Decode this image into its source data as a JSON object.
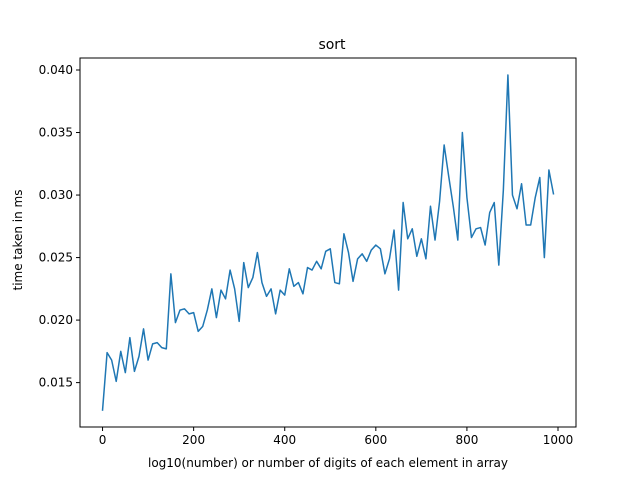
{
  "chart_data": {
    "type": "line",
    "title": "sort",
    "xlabel": "log10(number) or number of digits of each element in array",
    "ylabel": "time taken in ms",
    "xlim": [
      -49.5,
      1039.5
    ],
    "ylim": [
      0.01145,
      0.04096
    ],
    "xticks": [
      0,
      200,
      400,
      600,
      800,
      1000
    ],
    "xtick_labels": [
      "0",
      "200",
      "400",
      "600",
      "800",
      "1000"
    ],
    "yticks": [
      0.015,
      0.02,
      0.025,
      0.03,
      0.035,
      0.04
    ],
    "ytick_labels": [
      "0.015",
      "0.020",
      "0.025",
      "0.030",
      "0.035",
      "0.040"
    ],
    "grid": false,
    "legend": "none",
    "series": [
      {
        "color": "#1f77b4",
        "x": [
          0,
          10,
          20,
          30,
          40,
          50,
          60,
          70,
          80,
          90,
          100,
          110,
          120,
          130,
          140,
          150,
          160,
          170,
          180,
          190,
          200,
          210,
          220,
          230,
          240,
          250,
          260,
          270,
          280,
          290,
          300,
          310,
          320,
          330,
          340,
          350,
          360,
          370,
          380,
          390,
          400,
          410,
          420,
          430,
          440,
          450,
          460,
          470,
          480,
          490,
          500,
          510,
          520,
          530,
          540,
          550,
          560,
          570,
          580,
          590,
          600,
          610,
          620,
          630,
          640,
          650,
          660,
          670,
          680,
          690,
          700,
          710,
          720,
          730,
          740,
          750,
          760,
          770,
          780,
          790,
          800,
          810,
          820,
          830,
          840,
          850,
          860,
          870,
          880,
          890,
          900,
          910,
          920,
          930,
          940,
          950,
          960,
          970,
          980,
          990
        ],
        "y": [
          0.0128,
          0.0174,
          0.0168,
          0.0151,
          0.0175,
          0.0158,
          0.0186,
          0.0159,
          0.0171,
          0.0193,
          0.0168,
          0.0181,
          0.0182,
          0.0178,
          0.0177,
          0.0237,
          0.0198,
          0.0208,
          0.0209,
          0.0205,
          0.0206,
          0.0191,
          0.0195,
          0.0208,
          0.0225,
          0.0202,
          0.0224,
          0.0217,
          0.024,
          0.0225,
          0.0199,
          0.0246,
          0.0226,
          0.0234,
          0.0254,
          0.023,
          0.0219,
          0.0225,
          0.0205,
          0.0224,
          0.022,
          0.0241,
          0.0227,
          0.023,
          0.0221,
          0.0242,
          0.024,
          0.0247,
          0.0241,
          0.0255,
          0.0257,
          0.023,
          0.0229,
          0.0269,
          0.0254,
          0.0231,
          0.0249,
          0.0253,
          0.0247,
          0.0256,
          0.026,
          0.0257,
          0.0237,
          0.0249,
          0.0272,
          0.0224,
          0.0294,
          0.0265,
          0.0273,
          0.0251,
          0.0265,
          0.0249,
          0.0291,
          0.0264,
          0.0295,
          0.034,
          0.0315,
          0.0291,
          0.0264,
          0.035,
          0.0298,
          0.0266,
          0.0273,
          0.0274,
          0.026,
          0.0286,
          0.0294,
          0.0244,
          0.0304,
          0.0396,
          0.03,
          0.0289,
          0.0309,
          0.0276,
          0.0276,
          0.0298,
          0.0314,
          0.025,
          0.032,
          0.0301
        ]
      }
    ]
  }
}
